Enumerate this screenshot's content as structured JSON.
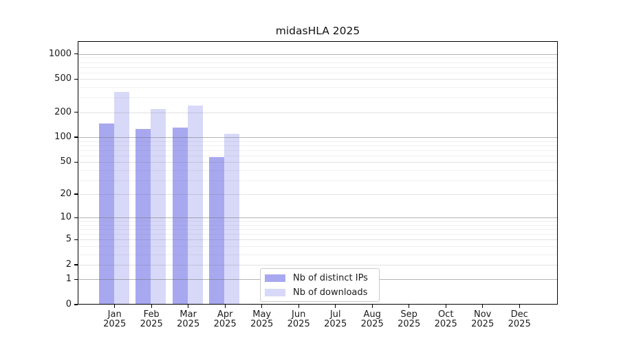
{
  "title": "midasHLA 2025",
  "chart_data": {
    "type": "bar",
    "title": "midasHLA 2025",
    "categories": [
      [
        "Jan",
        "2025"
      ],
      [
        "Feb",
        "2025"
      ],
      [
        "Mar",
        "2025"
      ],
      [
        "Apr",
        "2025"
      ],
      [
        "May",
        "2025"
      ],
      [
        "Jun",
        "2025"
      ],
      [
        "Jul",
        "2025"
      ],
      [
        "Aug",
        "2025"
      ],
      [
        "Sep",
        "2025"
      ],
      [
        "Oct",
        "2025"
      ],
      [
        "Nov",
        "2025"
      ],
      [
        "Dec",
        "2025"
      ]
    ],
    "series": [
      {
        "name": "Nb of distinct IPs",
        "color": "#a8a8f0",
        "values": [
          147,
          126,
          132,
          57,
          null,
          null,
          null,
          null,
          null,
          null,
          null,
          null
        ]
      },
      {
        "name": "Nb of downloads",
        "color": "#d8d8f8",
        "values": [
          350,
          220,
          240,
          110,
          null,
          null,
          null,
          null,
          null,
          null,
          null,
          null
        ]
      }
    ],
    "xlabel": "",
    "ylabel": "",
    "y_axis": {
      "scale": "log10(1+y)",
      "ticks": [
        0,
        1,
        2,
        5,
        10,
        20,
        50,
        100,
        200,
        500,
        1000
      ],
      "minor_ticks": [
        3,
        4,
        6,
        7,
        8,
        9,
        30,
        40,
        60,
        70,
        80,
        90,
        300,
        400,
        600,
        700,
        800,
        900
      ],
      "ylim": [
        0,
        1100
      ]
    },
    "grid": "horizontal",
    "legend_position": "lower center"
  },
  "legend": {
    "items": [
      {
        "label": "Nb of distinct IPs",
        "swatch_color": "#a8a8f0"
      },
      {
        "label": "Nb of downloads",
        "swatch_color": "#d8d8f8"
      }
    ]
  }
}
